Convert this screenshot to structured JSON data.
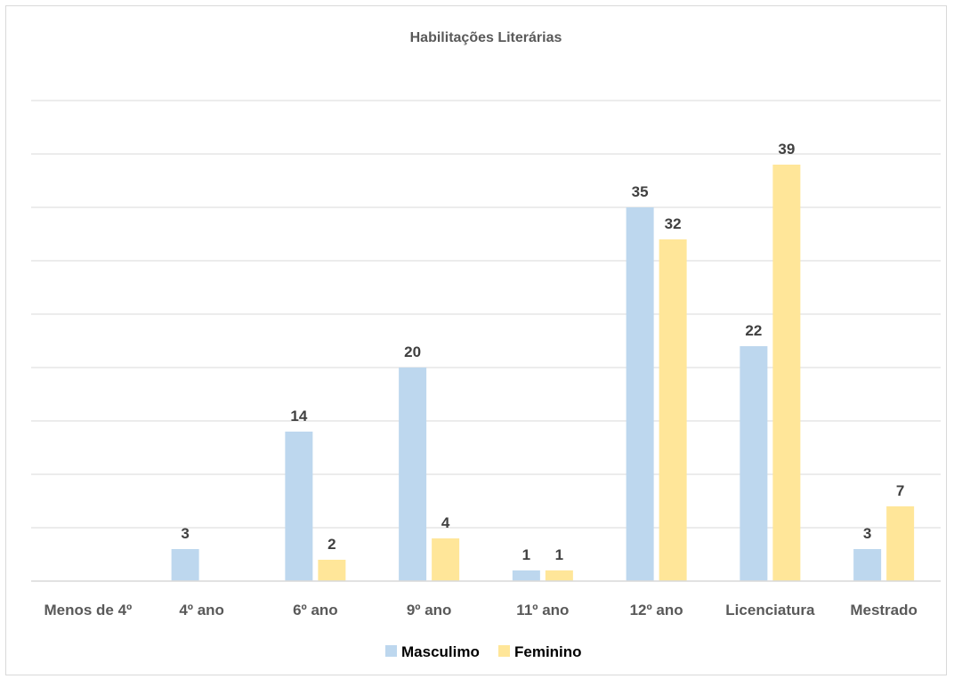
{
  "chart_data": {
    "type": "bar",
    "title": "Habilitações Literárias",
    "categories": [
      "Menos de 4º",
      "4º ano",
      "6º ano",
      "9º ano",
      "11º ano",
      "12º ano",
      "Licenciatura",
      "Mestrado"
    ],
    "series": [
      {
        "name": "Masculimo",
        "color": "#bdd7ee",
        "values": [
          null,
          3,
          14,
          20,
          1,
          35,
          22,
          3
        ]
      },
      {
        "name": "Feminino",
        "color": "#ffe699",
        "values": [
          null,
          null,
          2,
          4,
          1,
          32,
          39,
          7
        ]
      }
    ],
    "ylim": [
      0,
      45
    ],
    "grid": true,
    "legend_position": "bottom"
  }
}
